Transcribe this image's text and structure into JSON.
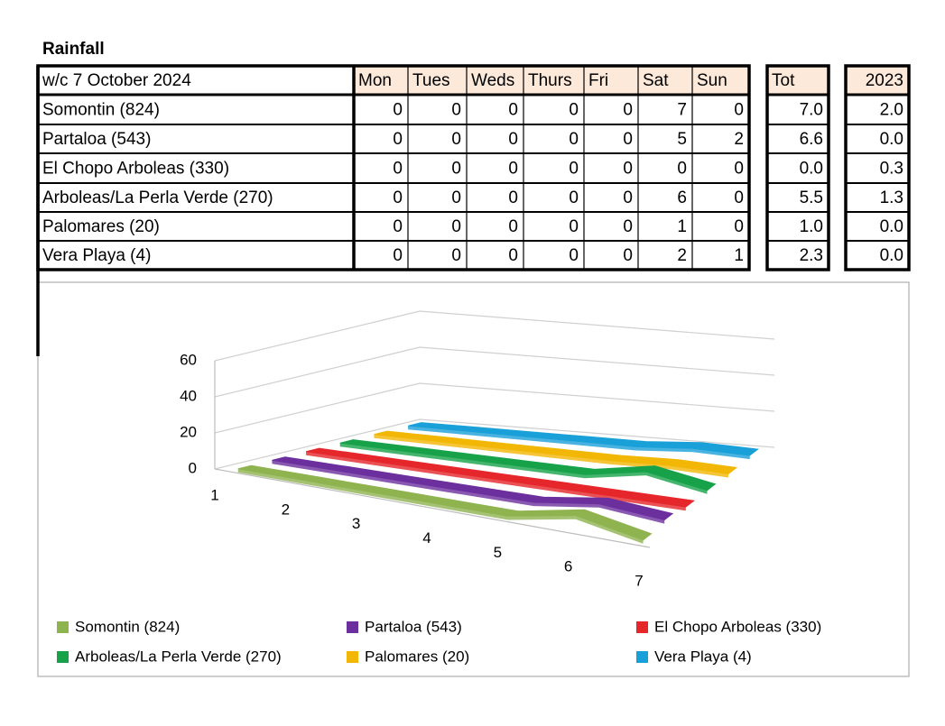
{
  "title": "Rainfall",
  "table": {
    "header": [
      "w/c 7 October 2024",
      "Mon",
      "Tues",
      "Weds",
      "Thurs",
      "Fri",
      "Sat",
      "Sun",
      "Tot",
      "2023"
    ],
    "rows": [
      [
        "Somontin (824)",
        0,
        0,
        0,
        0,
        0,
        7,
        0,
        "7.0",
        "2.0"
      ],
      [
        "Partaloa (543)",
        0,
        0,
        0,
        0,
        0,
        5,
        2,
        "6.6",
        "0.0"
      ],
      [
        "El Chopo Arboleas (330)",
        0,
        0,
        0,
        0,
        0,
        0,
        0,
        "0.0",
        "0.3"
      ],
      [
        "Arboleas/La Perla Verde (270)",
        0,
        0,
        0,
        0,
        0,
        6,
        0,
        "5.5",
        "1.3"
      ],
      [
        "Palomares (20)",
        0,
        0,
        0,
        0,
        0,
        1,
        0,
        "1.0",
        "0.0"
      ],
      [
        "Vera Playa (4)",
        0,
        0,
        0,
        0,
        0,
        2,
        1,
        "2.3",
        "0.0"
      ]
    ]
  },
  "chart_data": {
    "type": "ribbon3d",
    "categories": [
      1,
      2,
      3,
      4,
      5,
      6,
      7
    ],
    "ylim": [
      0,
      60
    ],
    "yticks": [
      0,
      20,
      40,
      60
    ],
    "grid": true,
    "series": [
      {
        "name": "Somontin (824)",
        "color": "#8fb34f",
        "values": [
          0,
          0,
          0,
          0,
          0,
          7,
          0
        ]
      },
      {
        "name": "Partaloa (543)",
        "color": "#6c2f9e",
        "values": [
          0,
          0,
          0,
          0,
          0,
          5,
          2
        ]
      },
      {
        "name": "El Chopo Arboleas (330)",
        "color": "#e5262b",
        "values": [
          0,
          0,
          0,
          0,
          0,
          0,
          0
        ]
      },
      {
        "name": "Arboleas/La Perla Verde (270)",
        "color": "#17a24a",
        "values": [
          0,
          0,
          0,
          0,
          0,
          6,
          0
        ]
      },
      {
        "name": "Palomares (20)",
        "color": "#f2b705",
        "values": [
          0,
          0,
          0,
          0,
          0,
          1,
          0
        ]
      },
      {
        "name": "Vera Playa (4)",
        "color": "#1aa0d8",
        "values": [
          0,
          0,
          0,
          0,
          0,
          2,
          1
        ]
      }
    ]
  }
}
